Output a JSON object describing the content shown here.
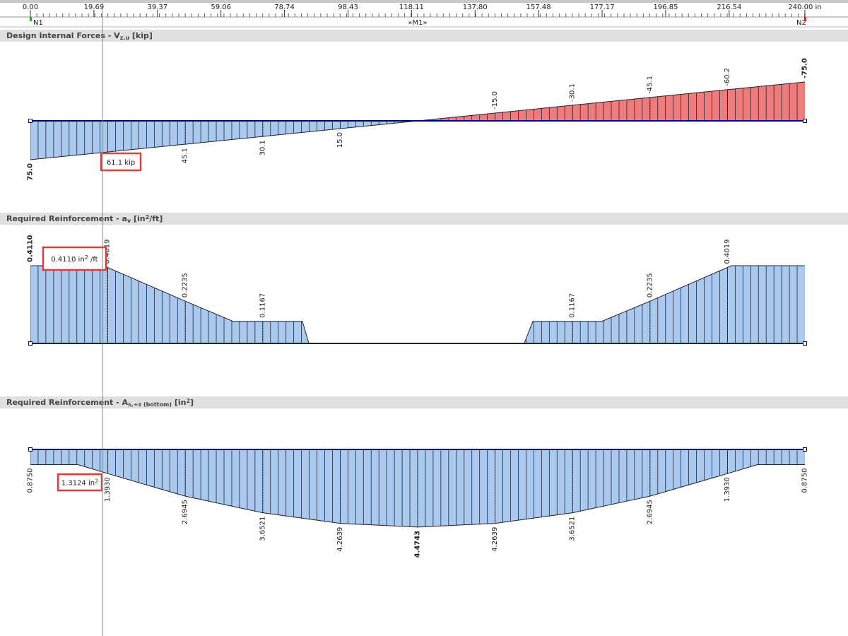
{
  "ruler": {
    "ticks": [
      {
        "value": 0,
        "label": "0.00"
      },
      {
        "value": 19.69,
        "label": "19.69"
      },
      {
        "value": 39.37,
        "label": "39.37"
      },
      {
        "value": 59.06,
        "label": "59.06"
      },
      {
        "value": 78.74,
        "label": "78.74"
      },
      {
        "value": 98.43,
        "label": "98.43"
      },
      {
        "value": 118.11,
        "label": "118.11"
      },
      {
        "value": 137.8,
        "label": "137.80"
      },
      {
        "value": 157.48,
        "label": "157.48"
      },
      {
        "value": 177.17,
        "label": "177.17"
      },
      {
        "value": 196.85,
        "label": "196.85"
      },
      {
        "value": 216.54,
        "label": "216.54"
      },
      {
        "value": 240,
        "label": "240.00 in"
      }
    ],
    "nodes": [
      "N1",
      "»M1»",
      "N2"
    ]
  },
  "panels": [
    {
      "title": [
        {
          "text": "Design Internal Forces - ",
          "pos": "base"
        },
        {
          "text": "V",
          "pos": "base"
        },
        {
          "text": "z,u",
          "pos": "sub"
        },
        {
          "text": " [kip]",
          "pos": "base"
        }
      ],
      "x": [
        0,
        48,
        72,
        96,
        144,
        168,
        192,
        216,
        240
      ],
      "values": [
        75,
        45.1,
        30.1,
        15,
        -15,
        -30.1,
        -45.1,
        -60.2,
        -75
      ],
      "value_labels": [
        "75.0",
        "45.1",
        "30.1",
        "15.0",
        "-15.0",
        "-30.1",
        "-45.1",
        "-60.2",
        "-75.0"
      ],
      "colors": {
        "positive": "#a9c9ef",
        "negative": "#f07b7b"
      },
      "callout": [
        {
          "text": "61.1 kip",
          "pos": "base"
        }
      ]
    },
    {
      "title": [
        {
          "text": "Required Reinforcement - ",
          "pos": "base"
        },
        {
          "text": "a",
          "pos": "base"
        },
        {
          "text": "v",
          "pos": "sub"
        },
        {
          "text": " [in",
          "pos": "base"
        },
        {
          "text": "2",
          "pos": "sup"
        },
        {
          "text": "/ft]",
          "pos": "base"
        }
      ],
      "x": [
        0,
        23.4,
        23.9,
        48,
        62.8,
        72,
        84.3,
        86.3,
        153,
        155.7,
        168,
        177,
        192,
        216,
        217.2,
        240
      ],
      "values": [
        0.411,
        0.411,
        0.4019,
        0.2235,
        0.1167,
        0.1167,
        0.1167,
        0,
        0,
        0.1167,
        0.1167,
        0.1167,
        0.2235,
        0.4019,
        0.411,
        0.411
      ],
      "value_labels": [
        "0.4110",
        null,
        "0.4019",
        "0.2235",
        null,
        "0.1167",
        null,
        null,
        null,
        null,
        "0.1167",
        null,
        "0.2235",
        "0.4019",
        null,
        null
      ],
      "colors": {
        "positive": "#a9c9ef",
        "negative": "#f07b7b"
      },
      "callout": [
        {
          "text": "0.4110 in",
          "pos": "base"
        },
        {
          "text": "2",
          "pos": "sup"
        },
        {
          "text": " /ft",
          "pos": "base"
        }
      ]
    },
    {
      "title": [
        {
          "text": "Required Reinforcement - ",
          "pos": "base"
        },
        {
          "text": "A",
          "pos": "base"
        },
        {
          "text": "s,+z (bottom)",
          "pos": "sub"
        },
        {
          "text": " [in",
          "pos": "base"
        },
        {
          "text": "2",
          "pos": "sup"
        },
        {
          "text": "]",
          "pos": "base"
        }
      ],
      "x": [
        0,
        14.7,
        24,
        48,
        72,
        96,
        120,
        144,
        168,
        192,
        216,
        225.3,
        240
      ],
      "values": [
        0.875,
        0.875,
        1.393,
        2.6945,
        3.6521,
        4.2639,
        4.4743,
        4.2639,
        3.6521,
        2.6945,
        1.393,
        0.875,
        0.875
      ],
      "value_labels": [
        "0.8750",
        null,
        "1.3930",
        "2.6945",
        "3.6521",
        "4.2639",
        "4.4743",
        "4.2639",
        "3.6521",
        "2.6945",
        "1.3930",
        null,
        "0.8750"
      ],
      "colors": {
        "positive": "#a9c9ef",
        "negative": "#f07b7b"
      },
      "callout": [
        {
          "text": "1.3124 in",
          "pos": "base"
        },
        {
          "text": "2",
          "pos": "sup"
        }
      ]
    }
  ]
}
